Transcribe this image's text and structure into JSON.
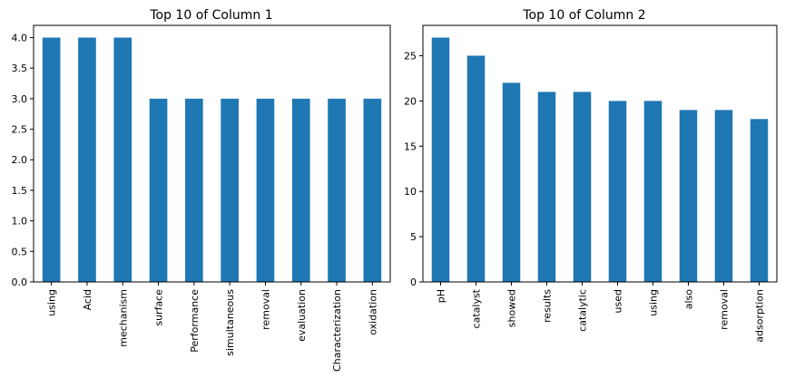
{
  "chart_data": [
    {
      "type": "bar",
      "title": "Top 10 of Column 1",
      "xlabel": "",
      "ylabel": "",
      "categories": [
        "using",
        "Acid",
        "mechanism",
        "surface",
        "Performance",
        "simultaneous",
        "removal",
        "evaluation",
        "Characterization",
        "oxidation"
      ],
      "values": [
        4,
        4,
        4,
        3,
        3,
        3,
        3,
        3,
        3,
        3
      ],
      "ylim": [
        0,
        4.2
      ],
      "yticks": [
        "0.0",
        "0.5",
        "1.0",
        "1.5",
        "2.0",
        "2.5",
        "3.0",
        "3.5",
        "4.0"
      ],
      "color": "#1f77b4",
      "grid": false,
      "legend": "none"
    },
    {
      "type": "bar",
      "title": "Top 10 of Column 2",
      "xlabel": "",
      "ylabel": "",
      "categories": [
        "pH",
        "catalyst",
        "showed",
        "results",
        "catalytic",
        "used",
        "using",
        "also",
        "removal",
        "adsorption"
      ],
      "values": [
        27,
        25,
        22,
        21,
        21,
        20,
        20,
        19,
        19,
        18
      ],
      "ylim": [
        0,
        28.35
      ],
      "yticks": [
        "0",
        "5",
        "10",
        "15",
        "20",
        "25"
      ],
      "color": "#1f77b4",
      "grid": false,
      "legend": "none"
    }
  ]
}
